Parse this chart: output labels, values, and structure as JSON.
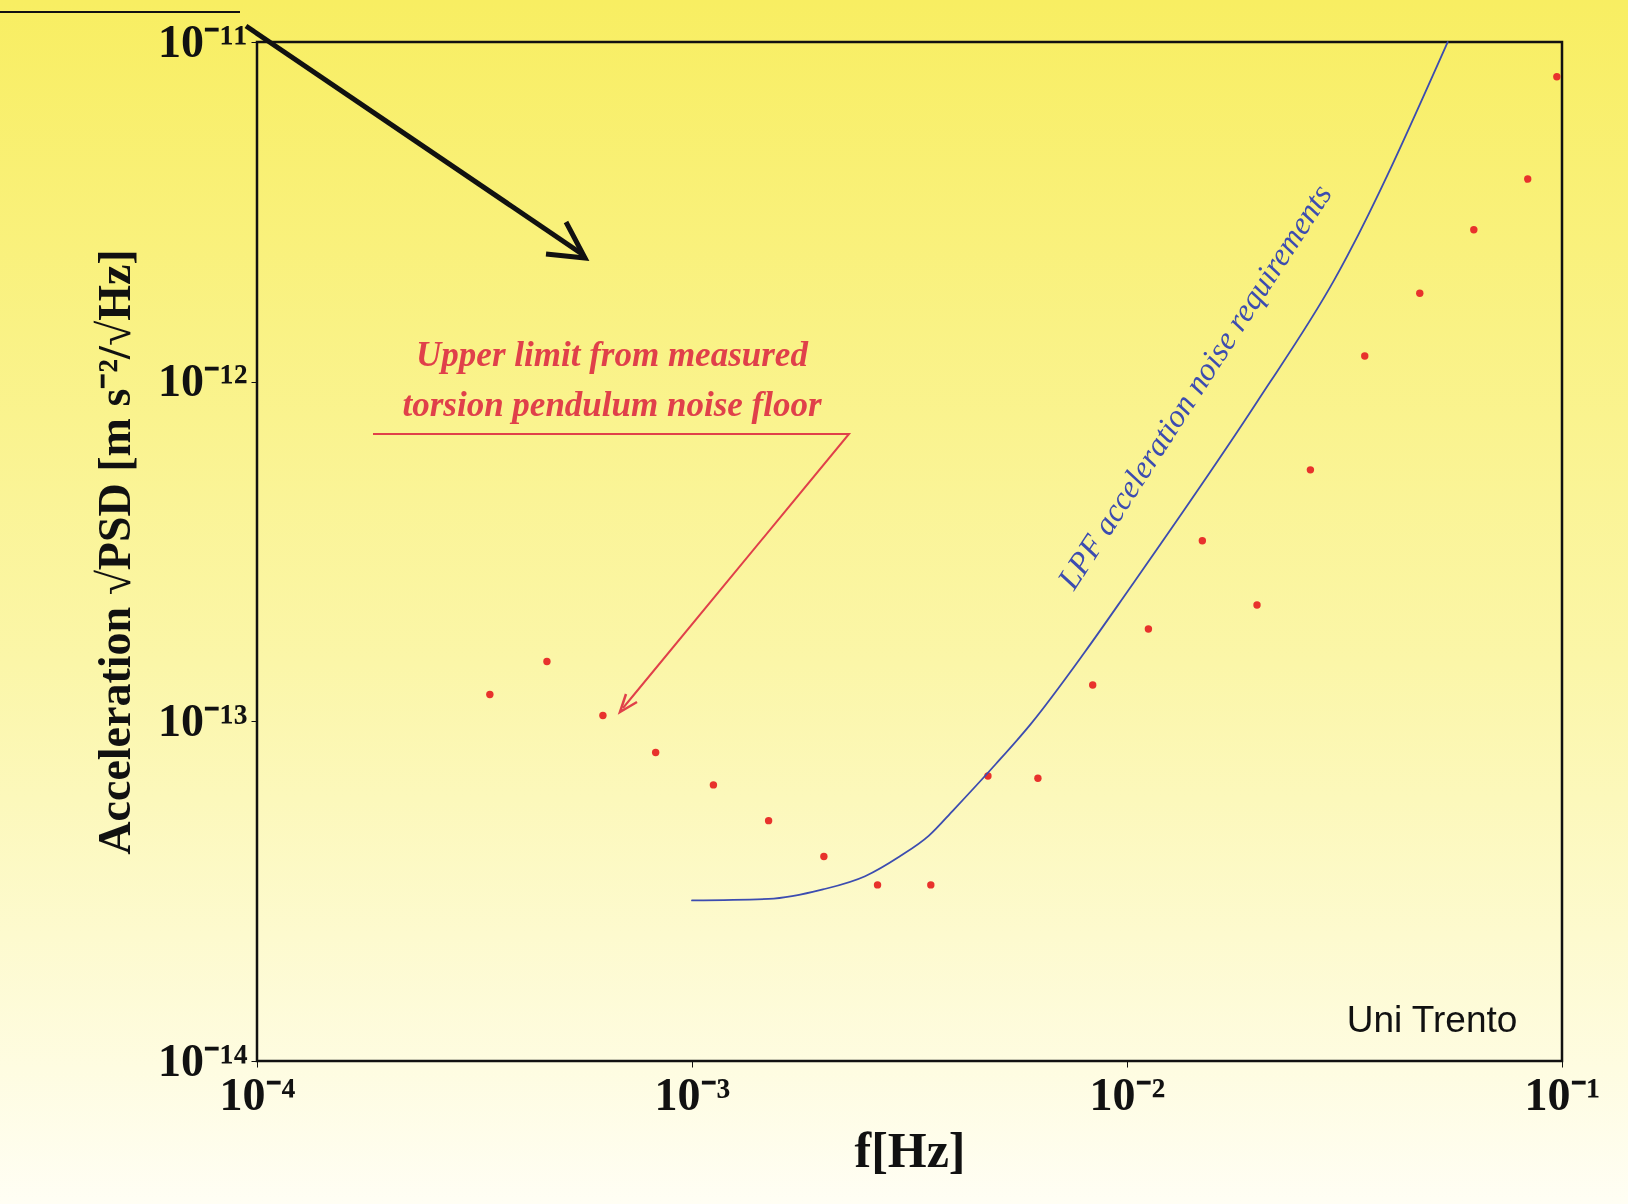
{
  "chart_data": {
    "type": "scatter",
    "xlabel": "f[Hz]",
    "ylabel": "Acceleration √PSD [m s⁻²/√Hz]",
    "log": "xy",
    "xlim": [
      0.0001,
      0.1
    ],
    "ylim": [
      1e-14,
      1e-11
    ],
    "xticks": [
      {
        "value": 0.0001,
        "label": "10⁻⁴"
      },
      {
        "value": 0.001,
        "label": "10⁻³"
      },
      {
        "value": 0.01,
        "label": "10⁻²"
      },
      {
        "value": 0.1,
        "label": "10⁻¹"
      }
    ],
    "yticks": [
      {
        "value": 1e-14,
        "label": "10⁻¹⁴"
      },
      {
        "value": 1e-13,
        "label": "10⁻¹³"
      },
      {
        "value": 1e-12,
        "label": "10⁻¹²"
      },
      {
        "value": 1e-11,
        "label": "10⁻¹¹"
      }
    ],
    "grid": false,
    "series": [
      {
        "marker": "circle",
        "color": "#e8322c",
        "x": [
          0.000343,
          0.000464,
          0.000624,
          0.000825,
          0.00112,
          0.0015,
          0.00201,
          0.00267,
          0.00354,
          0.00479,
          0.00624,
          0.00834,
          0.0112,
          0.0149,
          0.0199,
          0.0264,
          0.0352,
          0.0471,
          0.0627,
          0.0834,
          0.0973
        ],
        "values": [
          1.2e-13,
          1.5e-13,
          1.04e-13,
          8.1e-14,
          6.5e-14,
          5.1e-14,
          4e-14,
          3.3e-14,
          3.3e-14,
          6.9e-14,
          6.8e-14,
          1.28e-13,
          1.87e-13,
          3.4e-13,
          2.2e-13,
          5.5e-13,
          1.19e-12,
          1.82e-12,
          2.8e-12,
          3.95e-12,
          7.9e-12
        ]
      },
      {
        "type": "line",
        "color": "#3c4cb0",
        "x": [
          0.001,
          0.0015,
          0.002,
          0.0025,
          0.003,
          0.0035,
          0.004,
          0.005,
          0.006,
          0.008,
          0.01,
          0.02,
          0.03,
          0.0546
        ],
        "values": [
          2.97e-14,
          3e-14,
          3.2e-14,
          3.5e-14,
          4e-14,
          4.6e-14,
          5.5e-14,
          7.5e-14,
          9.8e-14,
          1.6e-13,
          2.4e-13,
          8.8e-13,
          2e-12,
          1e-11
        ]
      }
    ],
    "annotations": [
      "Upper limit from measured torsion pendulum noise floor",
      "LPF acceleration noise requirements",
      "Uni Trento"
    ]
  }
}
